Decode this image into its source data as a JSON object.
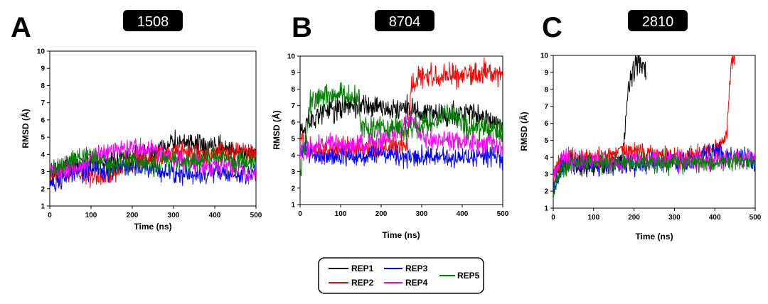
{
  "panel_letters": [
    "A",
    "B",
    "C"
  ],
  "legend": {
    "placement": "bottom-center",
    "entries": [
      {
        "label": "REP1",
        "color": "#000000"
      },
      {
        "label": "REP2",
        "color": "#ff0000"
      },
      {
        "label": "REP3",
        "color": "#0000ff"
      },
      {
        "label": "REP4",
        "color": "#ff00ff"
      },
      {
        "label": "REP5",
        "color": "#008000"
      }
    ]
  },
  "chart_data": [
    {
      "type": "line",
      "panel": "A",
      "title": "1508",
      "xlabel": "Time (ns)",
      "ylabel": "RMSD (Å)",
      "xlim": [
        0,
        500
      ],
      "ylim": [
        1,
        10
      ],
      "xticks": [
        0,
        100,
        200,
        300,
        400,
        500
      ],
      "yticks": [
        1,
        2,
        3,
        4,
        5,
        6,
        7,
        8,
        9,
        10
      ],
      "grid": false,
      "series": [
        {
          "name": "REP1",
          "color": "#000000",
          "x": [
            0,
            25,
            50,
            75,
            100,
            125,
            150,
            175,
            200,
            225,
            250,
            275,
            300,
            325,
            350,
            375,
            400,
            425,
            450,
            475,
            500
          ],
          "y": [
            3.0,
            3.2,
            3.4,
            3.5,
            3.6,
            3.5,
            3.6,
            3.8,
            3.9,
            4.0,
            4.1,
            4.4,
            4.7,
            4.6,
            4.6,
            4.4,
            4.4,
            4.3,
            4.2,
            4.1,
            4.0
          ]
        },
        {
          "name": "REP2",
          "color": "#ff0000",
          "x": [
            0,
            25,
            50,
            75,
            100,
            125,
            150,
            175,
            200,
            225,
            250,
            275,
            300,
            325,
            350,
            375,
            400,
            425,
            450,
            475,
            500
          ],
          "y": [
            2.7,
            2.9,
            2.9,
            2.8,
            2.7,
            2.7,
            2.8,
            3.4,
            3.6,
            3.6,
            3.8,
            4.0,
            4.1,
            4.1,
            4.0,
            4.0,
            4.1,
            4.1,
            4.1,
            4.2,
            4.0
          ]
        },
        {
          "name": "REP3",
          "color": "#0000ff",
          "x": [
            0,
            25,
            50,
            75,
            100,
            125,
            150,
            175,
            200,
            225,
            250,
            275,
            300,
            325,
            350,
            375,
            400,
            425,
            450,
            475,
            500
          ],
          "y": [
            2.2,
            2.5,
            2.8,
            3.0,
            3.1,
            3.1,
            3.2,
            3.3,
            3.3,
            3.2,
            3.1,
            3.0,
            2.9,
            2.9,
            2.8,
            2.9,
            3.0,
            2.9,
            2.8,
            2.9,
            2.9
          ]
        },
        {
          "name": "REP4",
          "color": "#ff00ff",
          "x": [
            0,
            25,
            50,
            75,
            100,
            125,
            150,
            175,
            200,
            225,
            250,
            275,
            300,
            325,
            350,
            375,
            400,
            425,
            450,
            475,
            500
          ],
          "y": [
            3.1,
            3.0,
            3.2,
            3.3,
            3.8,
            4.0,
            4.2,
            4.3,
            4.4,
            4.4,
            4.2,
            4.0,
            3.8,
            3.6,
            3.5,
            3.4,
            3.4,
            3.3,
            3.2,
            3.0,
            2.9
          ]
        },
        {
          "name": "REP5",
          "color": "#008000",
          "x": [
            0,
            25,
            50,
            75,
            100,
            125,
            150,
            175,
            200,
            225,
            250,
            275,
            300,
            325,
            350,
            375,
            400,
            425,
            450,
            475,
            500
          ],
          "y": [
            3.1,
            3.3,
            3.6,
            3.8,
            3.9,
            3.6,
            3.3,
            3.4,
            3.7,
            3.5,
            3.3,
            3.6,
            3.7,
            3.5,
            3.6,
            3.8,
            3.8,
            3.7,
            3.5,
            3.6,
            3.5
          ]
        }
      ]
    },
    {
      "type": "line",
      "panel": "B",
      "title": "8704",
      "xlabel": "Time (ns)",
      "ylabel": "RMSD (Å)",
      "xlim": [
        0,
        500
      ],
      "ylim": [
        1,
        10
      ],
      "xticks": [
        0,
        100,
        200,
        300,
        400,
        500
      ],
      "yticks": [
        1,
        2,
        3,
        4,
        5,
        6,
        7,
        8,
        9,
        10
      ],
      "grid": false,
      "series": [
        {
          "name": "REP1",
          "color": "#000000",
          "x": [
            0,
            25,
            50,
            75,
            100,
            125,
            150,
            175,
            200,
            225,
            250,
            275,
            300,
            325,
            350,
            375,
            400,
            425,
            450,
            475,
            500
          ],
          "y": [
            5.5,
            6.2,
            6.5,
            6.8,
            6.8,
            6.9,
            6.9,
            6.9,
            6.9,
            6.8,
            6.8,
            6.7,
            6.5,
            6.4,
            6.4,
            6.5,
            6.5,
            6.6,
            6.3,
            6.0,
            5.8
          ]
        },
        {
          "name": "REP2",
          "color": "#ff0000",
          "x": [
            0,
            25,
            50,
            75,
            100,
            125,
            150,
            175,
            200,
            225,
            250,
            265,
            275,
            300,
            325,
            350,
            375,
            400,
            425,
            450,
            475,
            500
          ],
          "y": [
            5.0,
            4.3,
            4.2,
            4.3,
            4.4,
            4.4,
            4.3,
            4.3,
            4.4,
            4.5,
            4.5,
            4.6,
            8.4,
            8.8,
            8.9,
            8.9,
            8.8,
            8.9,
            8.9,
            8.9,
            9.0,
            8.9
          ]
        },
        {
          "name": "REP3",
          "color": "#0000ff",
          "x": [
            0,
            25,
            50,
            75,
            100,
            125,
            150,
            175,
            200,
            225,
            250,
            275,
            300,
            325,
            350,
            375,
            400,
            425,
            450,
            475,
            500
          ],
          "y": [
            4.4,
            4.1,
            3.8,
            3.9,
            3.9,
            3.9,
            3.9,
            4.0,
            4.0,
            4.0,
            4.0,
            3.9,
            3.9,
            3.9,
            3.9,
            3.8,
            3.8,
            3.8,
            3.9,
            3.9,
            3.8
          ]
        },
        {
          "name": "REP4",
          "color": "#ff00ff",
          "x": [
            0,
            25,
            50,
            75,
            100,
            125,
            150,
            175,
            200,
            225,
            250,
            275,
            300,
            325,
            350,
            375,
            400,
            425,
            450,
            475,
            500
          ],
          "y": [
            4.2,
            4.5,
            4.6,
            4.8,
            4.6,
            4.6,
            4.7,
            4.8,
            4.9,
            5.2,
            5.6,
            6.3,
            5.0,
            4.9,
            4.9,
            4.9,
            4.9,
            4.8,
            4.7,
            4.7,
            4.5
          ]
        },
        {
          "name": "REP5",
          "color": "#008000",
          "x": [
            0,
            15,
            25,
            50,
            75,
            100,
            125,
            145,
            150,
            175,
            200,
            225,
            250,
            275,
            300,
            325,
            350,
            375,
            400,
            425,
            450,
            475,
            500
          ],
          "y": [
            3.0,
            5.0,
            7.4,
            7.6,
            7.6,
            7.7,
            7.5,
            7.6,
            5.8,
            5.6,
            5.6,
            5.6,
            5.6,
            5.7,
            5.8,
            6.0,
            6.4,
            6.5,
            6.0,
            5.6,
            5.8,
            5.6,
            5.4
          ]
        }
      ]
    },
    {
      "type": "line",
      "panel": "C",
      "title": "2810",
      "xlabel": "Time (ns)",
      "ylabel": "RMSD (Å)",
      "xlim": [
        0,
        500
      ],
      "ylim": [
        1,
        10
      ],
      "xticks": [
        0,
        100,
        200,
        300,
        400,
        500
      ],
      "yticks": [
        1,
        2,
        3,
        4,
        5,
        6,
        7,
        8,
        9,
        10
      ],
      "grid": false,
      "series": [
        {
          "name": "REP1",
          "color": "#000000",
          "x": [
            0,
            10,
            25,
            50,
            75,
            100,
            125,
            150,
            170,
            180,
            190,
            200,
            210,
            220,
            230
          ],
          "y": [
            2.0,
            3.2,
            3.6,
            3.6,
            3.5,
            3.5,
            3.6,
            3.6,
            3.8,
            6.5,
            8.5,
            9.5,
            9.8,
            9.5,
            9.0
          ]
        },
        {
          "name": "REP2",
          "color": "#ff0000",
          "x": [
            0,
            25,
            50,
            75,
            100,
            125,
            150,
            175,
            200,
            225,
            250,
            275,
            300,
            325,
            350,
            375,
            400,
            420,
            430,
            440,
            450
          ],
          "y": [
            3.0,
            3.8,
            3.9,
            3.9,
            3.9,
            4.0,
            4.2,
            4.3,
            4.4,
            4.3,
            4.2,
            4.1,
            4.0,
            4.1,
            4.2,
            4.3,
            4.5,
            4.8,
            5.5,
            9.5,
            9.8
          ]
        },
        {
          "name": "REP3",
          "color": "#0000ff",
          "x": [
            0,
            25,
            50,
            75,
            100,
            125,
            150,
            175,
            200,
            225,
            250,
            275,
            300,
            325,
            350,
            375,
            400,
            425,
            450,
            475,
            500
          ],
          "y": [
            2.0,
            3.6,
            3.6,
            3.6,
            3.6,
            3.6,
            3.6,
            3.6,
            3.6,
            3.7,
            3.7,
            3.7,
            3.7,
            3.7,
            3.8,
            4.2,
            4.4,
            4.1,
            4.0,
            3.9,
            3.8
          ]
        },
        {
          "name": "REP4",
          "color": "#ff00ff",
          "x": [
            0,
            25,
            50,
            75,
            100,
            125,
            150,
            175,
            200,
            225,
            250,
            275,
            300,
            325,
            350,
            375,
            400,
            425,
            450,
            475,
            500
          ],
          "y": [
            3.0,
            4.0,
            3.8,
            3.8,
            3.7,
            3.7,
            3.7,
            3.7,
            3.8,
            3.8,
            3.8,
            3.8,
            3.8,
            3.8,
            3.8,
            3.8,
            3.8,
            3.9,
            3.9,
            3.9,
            3.9
          ]
        },
        {
          "name": "REP5",
          "color": "#008000",
          "x": [
            0,
            25,
            50,
            75,
            100,
            125,
            150,
            175,
            200,
            225,
            250,
            275,
            300,
            325,
            350,
            375,
            400,
            425,
            450,
            475,
            500
          ],
          "y": [
            2.0,
            3.5,
            3.6,
            3.6,
            3.6,
            3.6,
            3.6,
            3.6,
            3.6,
            3.7,
            3.7,
            3.7,
            3.7,
            3.7,
            3.7,
            3.7,
            3.7,
            3.7,
            3.8,
            3.8,
            3.8
          ]
        }
      ]
    }
  ]
}
